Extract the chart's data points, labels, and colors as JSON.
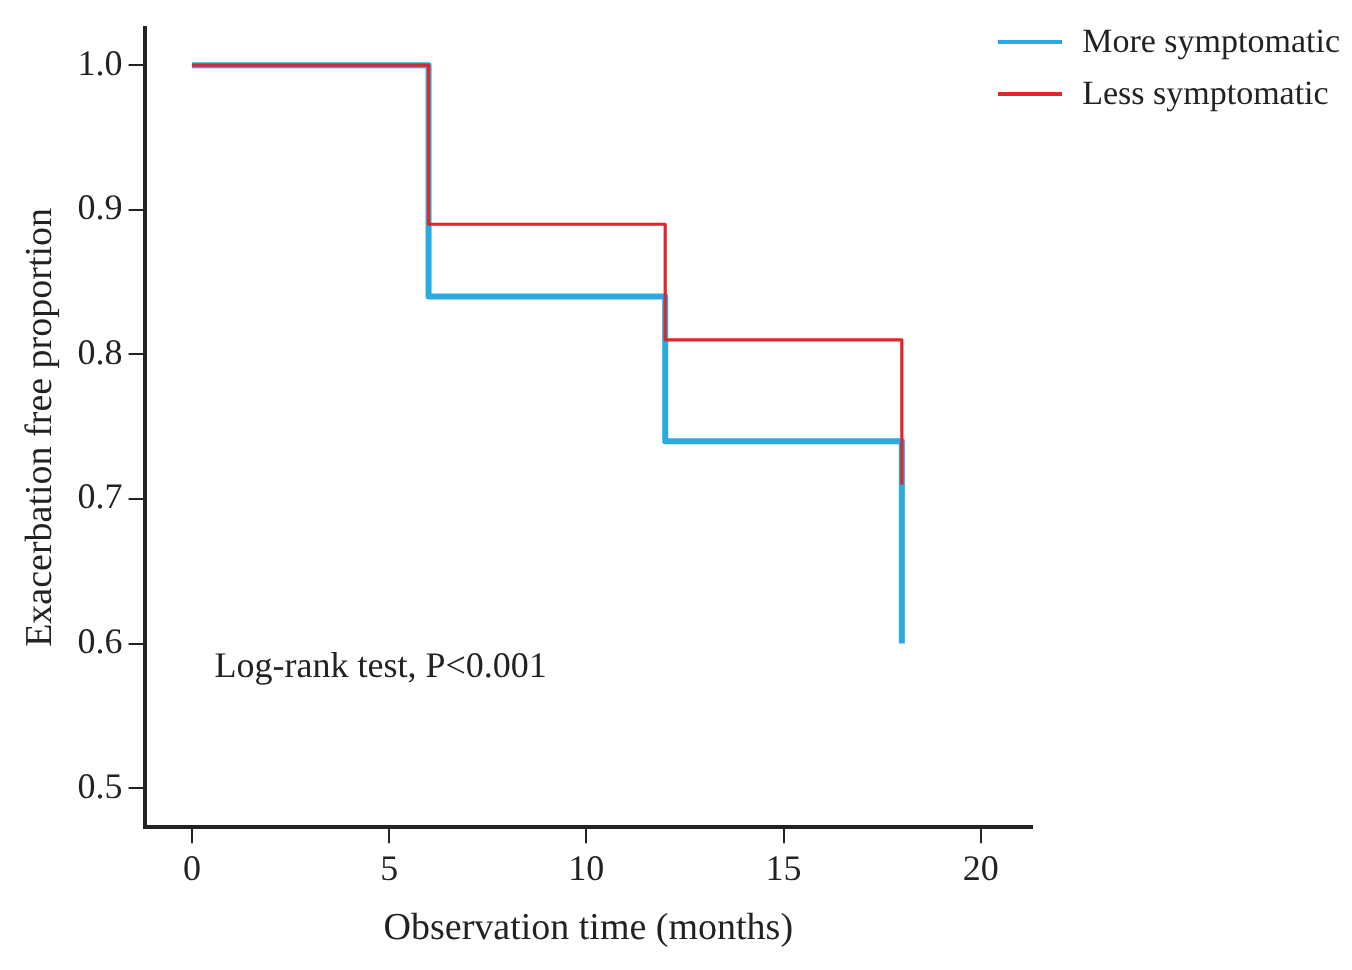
{
  "chart_data": {
    "type": "step",
    "xlabel": "Observation time (months)",
    "ylabel": "Exacerbation free proportion",
    "x": [
      0,
      6,
      12,
      18
    ],
    "series": [
      {
        "name": "More symptomatic",
        "color": "#29abe2",
        "values": [
          1.0,
          0.84,
          0.74,
          0.6
        ]
      },
      {
        "name": "Less symptomatic",
        "color": "#e0262b",
        "values": [
          1.0,
          0.89,
          0.81,
          0.71
        ]
      }
    ],
    "xlim": [
      -1.2,
      21.3
    ],
    "xticks": [
      0,
      5,
      10,
      15,
      20
    ],
    "ylim": [
      0.473,
      1.026
    ],
    "yticks": [
      {
        "value": 0.5,
        "label": "0.5"
      },
      0.6,
      0.7,
      0.8,
      0.9,
      {
        "value": 1.0,
        "label": "1.0"
      }
    ],
    "grid": false,
    "legend": "top right",
    "marker": "none",
    "line_style": "solid",
    "annotations": [
      "Log-rank test, P<0.001"
    ]
  }
}
